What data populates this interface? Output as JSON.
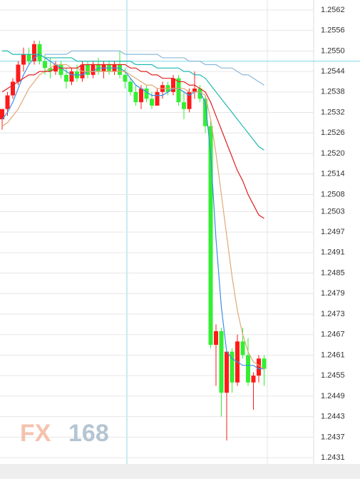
{
  "chart_data": {
    "type": "candlestick",
    "open": [
      1.253,
      1.2533,
      1.2537,
      1.2541,
      1.2546,
      1.2549,
      1.2547,
      1.2552,
      1.2547,
      1.2545,
      1.2544,
      1.2546,
      1.2543,
      1.2541,
      1.2544,
      1.2542,
      1.2546,
      1.2543,
      1.2546,
      1.2544,
      1.2546,
      1.2544,
      1.2546,
      1.2543,
      1.2541,
      1.2538,
      1.2535,
      1.2539,
      1.2536,
      1.2534,
      1.2538,
      1.254,
      1.2538,
      1.2542,
      1.2535,
      1.2533,
      1.2538,
      1.2539,
      1.2536,
      1.2528,
      1.2464,
      1.2468,
      1.245,
      1.2462,
      1.2453,
      1.2465,
      1.2461,
      1.2453,
      1.2455,
      1.246
    ],
    "high": [
      1.2533,
      1.2538,
      1.2542,
      1.2547,
      1.2551,
      1.2551,
      1.2553,
      1.2553,
      1.2549,
      1.2548,
      1.2547,
      1.2547,
      1.2545,
      1.2545,
      1.2546,
      1.2547,
      1.2547,
      1.2547,
      1.2548,
      1.2547,
      1.2547,
      1.2547,
      1.255,
      1.2545,
      1.2542,
      1.254,
      1.254,
      1.254,
      1.2538,
      1.2539,
      1.2541,
      1.2541,
      1.2543,
      1.2543,
      1.2538,
      1.2539,
      1.2544,
      1.254,
      1.2537,
      1.253,
      1.247,
      1.2469,
      1.2461,
      1.2463,
      1.2467,
      1.2469,
      1.2466,
      1.2456,
      1.2461,
      1.2461
    ],
    "low": [
      1.2527,
      1.2531,
      1.2536,
      1.254,
      1.2544,
      1.2546,
      1.2546,
      1.2546,
      1.2543,
      1.2542,
      1.2543,
      1.2542,
      1.2539,
      1.254,
      1.2541,
      1.2541,
      1.2542,
      1.2542,
      1.2543,
      1.2542,
      1.2543,
      1.2543,
      1.2542,
      1.2539,
      1.2537,
      1.2534,
      1.2533,
      1.2535,
      1.2533,
      1.2534,
      1.2536,
      1.2537,
      1.2537,
      1.2534,
      1.253,
      1.2532,
      1.2536,
      1.2535,
      1.2526,
      1.2463,
      1.2452,
      1.2443,
      1.2436,
      1.245,
      1.2452,
      1.246,
      1.2452,
      1.2445,
      1.2453,
      1.2452
    ],
    "close": [
      1.2533,
      1.2537,
      1.2541,
      1.2546,
      1.2549,
      1.2547,
      1.2552,
      1.2547,
      1.2545,
      1.2544,
      1.2546,
      1.2543,
      1.2541,
      1.2544,
      1.2542,
      1.2546,
      1.2543,
      1.2546,
      1.2544,
      1.2546,
      1.2544,
      1.2546,
      1.2543,
      1.2541,
      1.2538,
      1.2535,
      1.2539,
      1.2536,
      1.2534,
      1.2538,
      1.254,
      1.2538,
      1.2542,
      1.2535,
      1.2533,
      1.2538,
      1.2539,
      1.2536,
      1.2528,
      1.2464,
      1.2468,
      1.245,
      1.2462,
      1.2453,
      1.2465,
      1.2461,
      1.2453,
      1.2455,
      1.246,
      1.2457
    ],
    "up_color": "#ff1a1a",
    "down_color": "#33ee33",
    "lines": [
      {
        "color": "#3b8ee8",
        "values": [
          1.253,
          1.2532,
          1.2535,
          1.2539,
          1.2543,
          1.2546,
          1.2548,
          1.2549,
          1.2548,
          1.2547,
          1.2546,
          1.2545,
          1.2544,
          1.2543,
          1.2543,
          1.2543,
          1.2544,
          1.2544,
          1.2545,
          1.2545,
          1.2545,
          1.2545,
          1.2545,
          1.2544,
          1.2542,
          1.254,
          1.2539,
          1.2538,
          1.2537,
          1.2537,
          1.2537,
          1.2538,
          1.2539,
          1.2539,
          1.2538,
          1.2537,
          1.2538,
          1.2538,
          1.2535,
          1.252,
          1.2495,
          1.2475,
          1.2462,
          1.246,
          1.2459,
          1.2458,
          1.2458,
          1.2458,
          1.2457,
          1.2457
        ]
      },
      {
        "color": "#e0a878",
        "values": [
          1.2528,
          1.2529,
          1.2531,
          1.2533,
          1.2536,
          1.2539,
          1.2541,
          1.2543,
          1.2544,
          1.2545,
          1.2546,
          1.2546,
          1.2546,
          1.2545,
          1.2545,
          1.2544,
          1.2544,
          1.2544,
          1.2544,
          1.2544,
          1.2544,
          1.2544,
          1.2544,
          1.2544,
          1.2543,
          1.2542,
          1.2541,
          1.254,
          1.254,
          1.2539,
          1.2539,
          1.2539,
          1.2539,
          1.2539,
          1.2539,
          1.2538,
          1.2538,
          1.2538,
          1.2537,
          1.253,
          1.252,
          1.2508,
          1.2496,
          1.2484,
          1.2474,
          1.2467,
          1.2462,
          1.2459,
          1.2458,
          1.2457
        ]
      },
      {
        "color": "#e02020",
        "values": [
          1.2538,
          1.2539,
          1.254,
          1.2541,
          1.2542,
          1.2543,
          1.2543,
          1.2544,
          1.2544,
          1.2544,
          1.2545,
          1.2545,
          1.2545,
          1.2545,
          1.2545,
          1.2546,
          1.2546,
          1.2546,
          1.2546,
          1.2546,
          1.2546,
          1.2546,
          1.2546,
          1.2546,
          1.2545,
          1.2545,
          1.2544,
          1.2544,
          1.2543,
          1.2543,
          1.2542,
          1.2542,
          1.2542,
          1.2541,
          1.2541,
          1.254,
          1.254,
          1.2539,
          1.2538,
          1.2535,
          1.2531,
          1.2527,
          1.2523,
          1.2519,
          1.2515,
          1.2512,
          1.2508,
          1.2505,
          1.2502,
          1.2501
        ]
      },
      {
        "color": "#20b8b0",
        "values": [
          1.255,
          1.255,
          1.2549,
          1.2549,
          1.2549,
          1.2549,
          1.2549,
          1.2549,
          1.2548,
          1.2548,
          1.2548,
          1.2548,
          1.2548,
          1.2548,
          1.2547,
          1.2547,
          1.2547,
          1.2547,
          1.2547,
          1.2547,
          1.2547,
          1.2547,
          1.2547,
          1.2547,
          1.2547,
          1.2546,
          1.2546,
          1.2546,
          1.2546,
          1.2545,
          1.2545,
          1.2545,
          1.2545,
          1.2545,
          1.2544,
          1.2544,
          1.2543,
          1.2543,
          1.2542,
          1.254,
          1.2538,
          1.2536,
          1.2534,
          1.2532,
          1.253,
          1.2528,
          1.2526,
          1.2524,
          1.2522,
          1.2521
        ]
      },
      {
        "color": "#8cb8d8",
        "values": [
          null,
          null,
          null,
          null,
          null,
          null,
          null,
          null,
          1.2549,
          1.2549,
          1.2549,
          1.2549,
          1.2549,
          1.255,
          1.255,
          1.255,
          1.255,
          1.255,
          1.255,
          1.255,
          1.255,
          1.255,
          1.255,
          1.2549,
          1.2549,
          1.2549,
          1.2549,
          1.2549,
          1.2549,
          1.2549,
          1.2548,
          1.2548,
          1.2548,
          1.2548,
          1.2548,
          1.2547,
          1.2547,
          1.2547,
          1.2546,
          1.2546,
          1.2546,
          1.2545,
          1.2545,
          1.2545,
          1.2544,
          1.2543,
          1.2543,
          1.2542,
          1.2541,
          1.254
        ]
      }
    ],
    "current_price": 1.2547,
    "current_price_color": "#7fd8e8",
    "ylim": [
      1.24306,
      1.25624
    ],
    "yticks": [
      {
        "value": 1.2562,
        "label": "1.2562"
      },
      {
        "value": 1.2556,
        "label": "1.2556"
      },
      {
        "value": 1.255,
        "label": "1.2550"
      },
      {
        "value": 1.2544,
        "label": "1.2544"
      },
      {
        "value": 1.2538,
        "label": "1.2538"
      },
      {
        "value": 1.2532,
        "label": "1.2532"
      },
      {
        "value": 1.2526,
        "label": "1.2526"
      },
      {
        "value": 1.252,
        "label": "1.2520"
      },
      {
        "value": 1.2514,
        "label": "1.2514"
      },
      {
        "value": 1.2508,
        "label": "1.2508"
      },
      {
        "value": 1.2503,
        "label": "1.2503"
      },
      {
        "value": 1.2497,
        "label": "1.2497"
      },
      {
        "value": 1.2491,
        "label": "1.2491"
      },
      {
        "value": 1.2485,
        "label": "1.2485"
      },
      {
        "value": 1.2479,
        "label": "1.2479"
      },
      {
        "value": 1.2473,
        "label": "1.2473"
      },
      {
        "value": 1.2467,
        "label": "1.2467"
      },
      {
        "value": 1.2461,
        "label": "1.2461"
      },
      {
        "value": 1.2455,
        "label": "1.2455"
      },
      {
        "value": 1.2449,
        "label": "1.2449"
      },
      {
        "value": 1.2443,
        "label": "1.2443"
      },
      {
        "value": 1.2437,
        "label": "1.2437"
      },
      {
        "value": 1.2431,
        "label": "1.2431"
      }
    ],
    "grid": true
  },
  "watermark": {
    "prefix": "FX",
    "suffix": "168"
  }
}
